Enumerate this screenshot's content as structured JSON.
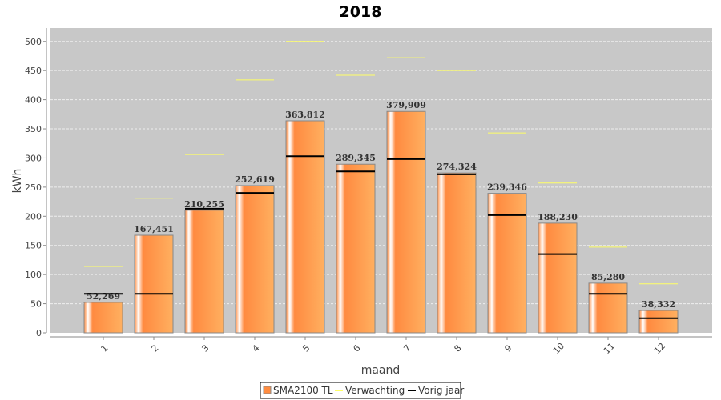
{
  "chart_data": {
    "type": "bar",
    "title": "2018",
    "xlabel": "maand",
    "ylabel": "kWh",
    "ylim": [
      0,
      523
    ],
    "yticks": [
      0,
      50,
      100,
      150,
      200,
      250,
      300,
      350,
      400,
      450,
      500
    ],
    "grid": true,
    "legend_position": "bottom",
    "categories": [
      "1",
      "2",
      "3",
      "4",
      "5",
      "6",
      "7",
      "8",
      "9",
      "10",
      "11",
      "12"
    ],
    "series": [
      {
        "name": "SMA2100 TL",
        "kind": "bar",
        "color": "#ff8c40",
        "values": [
          52.269,
          167.451,
          210.255,
          252.619,
          363.812,
          289.345,
          379.909,
          274.324,
          239.346,
          188.23,
          85.28,
          38.332
        ],
        "labels": [
          "52,269",
          "167,451",
          "210,255",
          "252,619",
          "363,812",
          "289,345",
          "379,909",
          "274,324",
          "239,346",
          "188,230",
          "85,280",
          "38,332"
        ]
      },
      {
        "name": "Verwachting",
        "kind": "marker",
        "color": "#ffff66",
        "values": [
          114,
          231,
          306,
          434,
          500,
          442,
          472,
          450,
          343,
          257,
          147,
          84
        ]
      },
      {
        "name": "Vorig jaar",
        "kind": "marker",
        "color": "#000000",
        "values": [
          67,
          67,
          213,
          240,
          303,
          277,
          298,
          272,
          202,
          135,
          67,
          25
        ]
      }
    ]
  }
}
